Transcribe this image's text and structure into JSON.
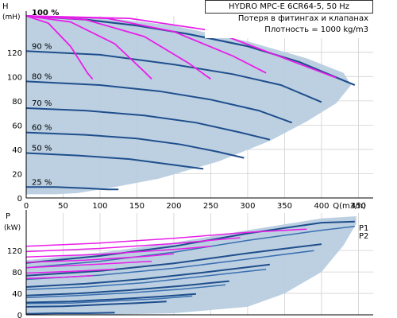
{
  "chart_data": [
    {
      "type": "line",
      "title": "HYDRO MPC-E 6CR64-5, 50 Hz",
      "subtitle_lines": [
        "Потеря в фитингах и клапанах",
        "Плотность = 1000 kg/m3"
      ],
      "ylabel": "H",
      "yunit": "(mH)",
      "xlabel": "Q(m3/h)",
      "xlim": [
        0,
        470
      ],
      "ylim": [
        0,
        150
      ],
      "x_ticks": [
        0,
        50,
        100,
        150,
        200,
        250,
        300,
        350,
        400,
        450
      ],
      "y_ticks": [
        0,
        20,
        40,
        60,
        80,
        100,
        120
      ],
      "grid": true,
      "operating_area_color": "#b8cde0",
      "curve_color": "#1f4e8c",
      "loss_curve_color": "#e81ee8",
      "speed_curves": [
        {
          "label": "100 %",
          "points": [
            [
              0,
              150
            ],
            [
              80,
              147
            ],
            [
              150,
              142
            ],
            [
              220,
              135
            ],
            [
              300,
              125
            ],
            [
              370,
              112
            ],
            [
              425,
              98
            ],
            [
              445,
              93
            ]
          ]
        },
        {
          "label": "90 %",
          "points": [
            [
              0,
              121
            ],
            [
              100,
              118
            ],
            [
              200,
              110
            ],
            [
              280,
              102
            ],
            [
              345,
              93
            ],
            [
              400,
              79
            ]
          ]
        },
        {
          "label": "80 %",
          "points": [
            [
              0,
              96
            ],
            [
              100,
              93
            ],
            [
              180,
              88
            ],
            [
              250,
              81
            ],
            [
              315,
              72
            ],
            [
              360,
              62
            ]
          ]
        },
        {
          "label": "70 %",
          "points": [
            [
              0,
              74
            ],
            [
              80,
              72
            ],
            [
              160,
              68
            ],
            [
              230,
              62
            ],
            [
              290,
              54
            ],
            [
              330,
              48
            ]
          ]
        },
        {
          "label": "60 %",
          "points": [
            [
              0,
              54
            ],
            [
              80,
              52
            ],
            [
              150,
              49
            ],
            [
              210,
              44
            ],
            [
              260,
              38
            ],
            [
              295,
              33
            ]
          ]
        },
        {
          "label": "50 %",
          "points": [
            [
              0,
              37
            ],
            [
              70,
              35
            ],
            [
              140,
              32
            ],
            [
              190,
              28
            ],
            [
              240,
              24
            ]
          ]
        },
        {
          "label": "25 %",
          "points": [
            [
              0,
              9
            ],
            [
              40,
              9
            ],
            [
              80,
              8
            ],
            [
              110,
              7
            ],
            [
              125,
              7
            ]
          ]
        }
      ],
      "loss_curves": [
        {
          "points": [
            [
              0,
              150
            ],
            [
              30,
              144
            ],
            [
              60,
              125
            ],
            [
              83,
              103
            ],
            [
              90,
              98
            ]
          ]
        },
        {
          "points": [
            [
              0,
              150
            ],
            [
              60,
              145
            ],
            [
              120,
              127
            ],
            [
              160,
              104
            ],
            [
              170,
              98
            ]
          ]
        },
        {
          "points": [
            [
              0,
              150
            ],
            [
              80,
              147
            ],
            [
              160,
              133
            ],
            [
              220,
              111
            ],
            [
              250,
              98
            ]
          ]
        },
        {
          "points": [
            [
              0,
              150
            ],
            [
              110,
              148
            ],
            [
              200,
              137
            ],
            [
              280,
              117
            ],
            [
              325,
              103
            ]
          ]
        },
        {
          "points": [
            [
              0,
              150
            ],
            [
              140,
              148
            ],
            [
              250,
              138
            ],
            [
              350,
              115
            ],
            [
              420,
              99
            ]
          ]
        }
      ],
      "operating_area": [
        [
          0,
          150
        ],
        [
          100,
          149
        ],
        [
          200,
          142
        ],
        [
          300,
          129
        ],
        [
          380,
          115
        ],
        [
          430,
          103
        ],
        [
          440,
          93
        ],
        [
          420,
          78
        ],
        [
          380,
          63
        ],
        [
          330,
          47
        ],
        [
          260,
          30
        ],
        [
          180,
          16
        ],
        [
          120,
          9
        ],
        [
          90,
          6
        ],
        [
          70,
          4
        ],
        [
          40,
          3
        ],
        [
          0,
          3
        ]
      ]
    },
    {
      "type": "line",
      "ylabel": "P",
      "yunit": "(kW)",
      "ylim": [
        0,
        190
      ],
      "y_ticks": [
        0,
        40,
        80,
        120
      ],
      "grid": true,
      "series_labels": [
        "P1",
        "P2"
      ],
      "p1_curves": [
        {
          "points": [
            [
              0,
              97
            ],
            [
              100,
              110
            ],
            [
              200,
              128
            ],
            [
              300,
              152
            ],
            [
              400,
              172
            ],
            [
              445,
              174
            ]
          ]
        },
        {
          "points": [
            [
              0,
              73
            ],
            [
              100,
              82
            ],
            [
              200,
              96
            ],
            [
              300,
              115
            ],
            [
              400,
              132
            ]
          ]
        },
        {
          "points": [
            [
              0,
              52
            ],
            [
              80,
              58
            ],
            [
              160,
              67
            ],
            [
              240,
              79
            ],
            [
              330,
              94
            ]
          ]
        },
        {
          "points": [
            [
              0,
              36
            ],
            [
              70,
              40
            ],
            [
              140,
              46
            ],
            [
              210,
              54
            ],
            [
              275,
              63
            ]
          ]
        },
        {
          "points": [
            [
              0,
              23
            ],
            [
              60,
              25
            ],
            [
              120,
              29
            ],
            [
              180,
              34
            ],
            [
              230,
              39
            ]
          ]
        },
        {
          "points": [
            [
              0,
              15
            ],
            [
              50,
              16
            ],
            [
              100,
              19
            ],
            [
              150,
              22
            ],
            [
              190,
              25
            ]
          ]
        },
        {
          "points": [
            [
              0,
              2
            ],
            [
              40,
              3
            ],
            [
              80,
              3
            ],
            [
              120,
              4
            ]
          ]
        }
      ],
      "p2_curves": [
        {
          "points": [
            [
              0,
              88
            ],
            [
              100,
              100
            ],
            [
              200,
              117
            ],
            [
              300,
              139
            ],
            [
              400,
              158
            ],
            [
              445,
              165
            ]
          ]
        },
        {
          "points": [
            [
              0,
              66
            ],
            [
              100,
              74
            ],
            [
              200,
              87
            ],
            [
              300,
              104
            ],
            [
              390,
              120
            ]
          ]
        },
        {
          "points": [
            [
              0,
              47
            ],
            [
              80,
              52
            ],
            [
              160,
              60
            ],
            [
              240,
              72
            ],
            [
              325,
              85
            ]
          ]
        },
        {
          "points": [
            [
              0,
              32
            ],
            [
              70,
              36
            ],
            [
              140,
              41
            ],
            [
              210,
              48
            ],
            [
              270,
              56
            ]
          ]
        },
        {
          "points": [
            [
              0,
              21
            ],
            [
              60,
              22
            ],
            [
              120,
              26
            ],
            [
              180,
              30
            ],
            [
              225,
              35
            ]
          ]
        }
      ],
      "loss_power_curves": [
        {
          "points": [
            [
              0,
              128
            ],
            [
              100,
              134
            ],
            [
              200,
              143
            ],
            [
              300,
              154
            ],
            [
              380,
              160
            ]
          ]
        },
        {
          "points": [
            [
              0,
              118
            ],
            [
              100,
              124
            ],
            [
              200,
              133
            ],
            [
              290,
              144
            ]
          ]
        },
        {
          "points": [
            [
              0,
              108
            ],
            [
              100,
              113
            ],
            [
              200,
              122
            ],
            [
              250,
              128
            ]
          ]
        },
        {
          "points": [
            [
              0,
              98
            ],
            [
              80,
              102
            ],
            [
              160,
              109
            ],
            [
              200,
              114
            ]
          ]
        },
        {
          "points": [
            [
              0,
              88
            ],
            [
              60,
              92
            ],
            [
              120,
              96
            ],
            [
              170,
              100
            ]
          ]
        },
        {
          "points": [
            [
              0,
              78
            ],
            [
              60,
              81
            ],
            [
              120,
              85
            ]
          ]
        },
        {
          "points": [
            [
              0,
              68
            ],
            [
              50,
              70
            ],
            [
              90,
              73
            ]
          ]
        }
      ],
      "operating_area": [
        [
          0,
          102
        ],
        [
          100,
          116
        ],
        [
          200,
          135
        ],
        [
          300,
          158
        ],
        [
          400,
          180
        ],
        [
          447,
          184
        ],
        [
          447,
          170
        ],
        [
          430,
          130
        ],
        [
          400,
          80
        ],
        [
          350,
          40
        ],
        [
          300,
          15
        ],
        [
          200,
          3
        ],
        [
          100,
          0
        ],
        [
          0,
          0
        ]
      ]
    }
  ]
}
